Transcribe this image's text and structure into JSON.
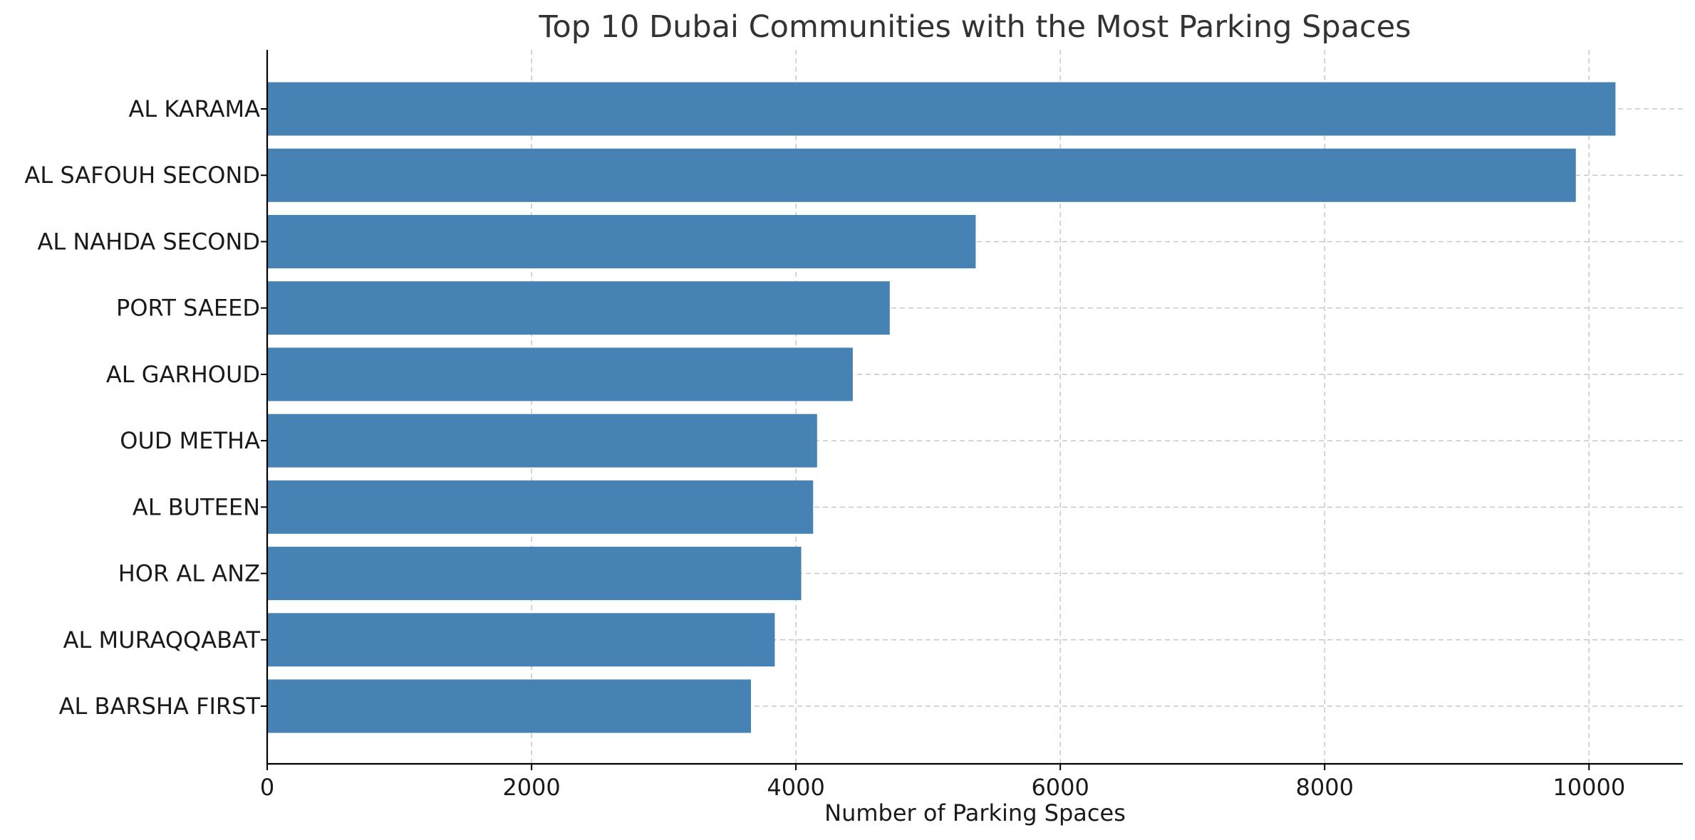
{
  "chart_data": {
    "type": "bar",
    "orientation": "horizontal",
    "title": "Top 10 Dubai Communities with the Most Parking Spaces",
    "xlabel": "Number of Parking Spaces",
    "ylabel": "",
    "categories": [
      "AL KARAMA",
      "AL SAFOUH SECOND",
      "AL NAHDA SECOND",
      "PORT SAEED",
      "AL GARHOUD",
      "OUD METHA",
      "AL BUTEEN",
      "HOR AL ANZ",
      "AL MURAQQABAT",
      "AL BARSHA FIRST"
    ],
    "values": [
      10200,
      9900,
      5360,
      4710,
      4430,
      4160,
      4130,
      4040,
      3840,
      3660
    ],
    "xlim": [
      0,
      10710
    ],
    "xticks": [
      0,
      2000,
      4000,
      6000,
      8000,
      10000
    ],
    "grid": true,
    "bar_color": "#4682b4",
    "legend": "none"
  }
}
